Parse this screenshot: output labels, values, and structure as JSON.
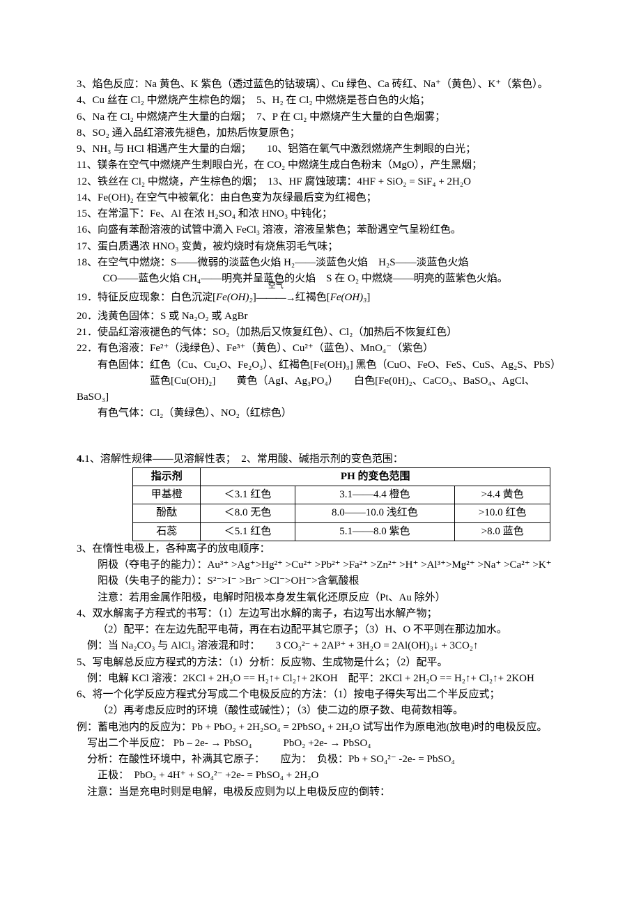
{
  "lines": {
    "l3": "3、焰色反应：Na 黄色、K 紫色（透过蓝色的钴玻璃）、Cu 绿色、Ca 砖红、Na⁺（黄色）、K⁺（紫色）。",
    "l4": "4、Cu 丝在 Cl₂ 中燃烧产生棕色的烟；　5、H₂ 在 Cl₂ 中燃烧是苍白色的火焰；",
    "l6": "6、Na 在 Cl₂ 中燃烧产生大量的白烟；　7、P 在 Cl₂ 中燃烧产生大量的白色烟雾；",
    "l8": "8、SO₂ 通入品红溶液先褪色，加热后恢复原色；",
    "l9": "9、NH₃ 与 HCl 相遇产生大量的白烟；　　10、铝箔在氧气中激烈燃烧产生刺眼的白光；",
    "l11": "11、镁条在空气中燃烧产生刺眼白光，在 CO₂ 中燃烧生成白色粉末（MgO），产生黑烟；",
    "l12": "12、铁丝在 Cl₂ 中燃烧，产生棕色的烟；　13、HF 腐蚀玻璃：4HF + SiO₂  =  SiF₄  + 2H₂O",
    "l14": "14、Fe(OH)₂ 在空气中被氧化：由白色变为灰绿最后变为红褐色；",
    "l15": "15、在常温下：Fe、Al  在浓 H₂SO₄ 和浓 HNO₃ 中钝化；",
    "l16": "16、向盛有苯酚溶液的试管中滴入 FeCl₃ 溶液，溶液呈紫色；苯酚遇空气呈粉红色。",
    "l17": "17、蛋白质遇浓 HNO₃ 变黄，被灼烧时有烧焦羽毛气味；",
    "l18a": "18、在空气中燃烧：S——微弱的淡蓝色火焰  H₂——淡蓝色火焰　H₂S——淡蓝色火焰",
    "l18b": "CO——蓝色火焰 CH₄——明亮并呈蓝色的火焰　S 在 O₂ 中燃烧——明亮的蓝紫色火焰。",
    "l19a": "19．特征反应现象：白色沉淀[",
    "l19b_formula": "Fe(OH)₂",
    "l19c": "]",
    "l19_arrow_top": "空气",
    "l19_arrow": "———→",
    "l19d": "红褐色[",
    "l19e_formula": "Fe(OH)₃",
    "l19f": "]",
    "l20": "20．浅黄色固体：S 或 Na₂O₂ 或 AgBr",
    "l21": "21．使品红溶液褪色的气体：SO₂（加热后又恢复红色）、Cl₂（加热后不恢复红色）",
    "l22a": "22．有色溶液：Fe²⁺（浅绿色）、Fe³⁺（黄色）、Cu²⁺（蓝色）、MnO₄⁻（紫色）",
    "l22b": "　　有色固体：红色（Cu、Cu₂O、Fe₂O₃）、红褐色[Fe(OH)₃] 黑色（CuO、FeO、FeS、CuS、Ag₂S、PbS）",
    "l22c": "　　　　　　　蓝色[Cu(OH)₂]　　黄色（AgI、Ag₃PO₄）　　白色[Fe(0H)₂、CaCO₃、BaSO₄、AgCl、BaSO₃]",
    "l22d": "　　有色气体：Cl₂（黄绿色）、NO₂（红棕色）",
    "s4_1": "1、溶解性规律——见溶解性表；　2、常用酸、碱指示剂的变色范围：",
    "s4_prefix": "4.",
    "table": {
      "header": [
        "指示剂",
        "PH 的变色范围"
      ],
      "rows": [
        [
          "甲基橙",
          "＜3.1 红色",
          "3.1——4.4 橙色",
          ">4.4 黄色"
        ],
        [
          "酚酞",
          "＜8.0 无色",
          "8.0——10.0 浅红色",
          ">10.0 红色"
        ],
        [
          "石蕊",
          "＜5.1 红色",
          "5.1——8.0 紫色",
          ">8.0 蓝色"
        ]
      ]
    },
    "s3a": "3、在惰性电极上，各种离子的放电顺序：",
    "s3b": "　　阴极（夺电子的能力）：Au³⁺ >Ag⁺>Hg²⁺ >Cu²⁺ >Pb²⁺ >Fa²⁺ >Zn²⁺ >H⁺ >Al³⁺>Mg²⁺ >Na⁺ >Ca²⁺ >K⁺",
    "s3c": "　　阳极（失电子的能力）：S²⁻>I⁻ >Br⁻ >Cl⁻>OH⁻>含氧酸根",
    "s3d": "　　注意：若用金属作阳极，电解时阳极本身发生氧化还原反应（Pt、Au 除外）",
    "s4a": "4、双水解离子方程式的书写：（1）左边写出水解的离子，右边写出水解产物；",
    "s4b": "（2）配平：在左边先配平电荷，再在右边配平其它原子；（3）H、O 不平则在那边加水。",
    "s4c": "　例：当 Na₂CO₃ 与 AlCl₃ 溶液混和时：　　3 CO₃²⁻ + 2Al³⁺ + 3H₂O = 2Al(OH)₃↓  + 3CO₂↑",
    "s5a": "5、写电解总反应方程式的方法：（1）分析：反应物、生成物是什么；（2）配平。",
    "s5b": "　例：电解 KCl 溶液：2KCl + 2H₂O == H₂↑+ Cl₂↑+ 2KOH　配平：2KCl + 2H₂O == H₂↑+ Cl₂↑+ 2KOH",
    "s6a": "6、将一个化学反应方程式分写成二个电极反应的方法：（1）按电子得失写出二个半反应式；",
    "s6b": "（2）再考虑反应时的环境（酸性或碱性）；（3）使二边的原子数、电荷数相等。",
    "s6c": "  例：蓄电池内的反应为：Pb + PbO₂ + 2H₂SO₄ = 2PbSO₄ + 2H₂O  试写出作为原电池(放电)时的电极反应。",
    "s6d": "　写出二个半反应：  Pb  – 2e-  →  PbSO₄　　　PbO₂ +2e-  →  PbSO₄",
    "s6e": "　分析：在酸性环境中，补满其它原子：　　应为：　负极：Pb + SO₄²⁻ -2e- = PbSO₄",
    "s6f": "　　正极：　PbO₂ + 4H⁺ + SO₄²⁻ +2e- = PbSO₄ + 2H₂O",
    "s6g": "　注意：当是充电时则是电解，电极反应则为以上电极反应的倒转："
  }
}
